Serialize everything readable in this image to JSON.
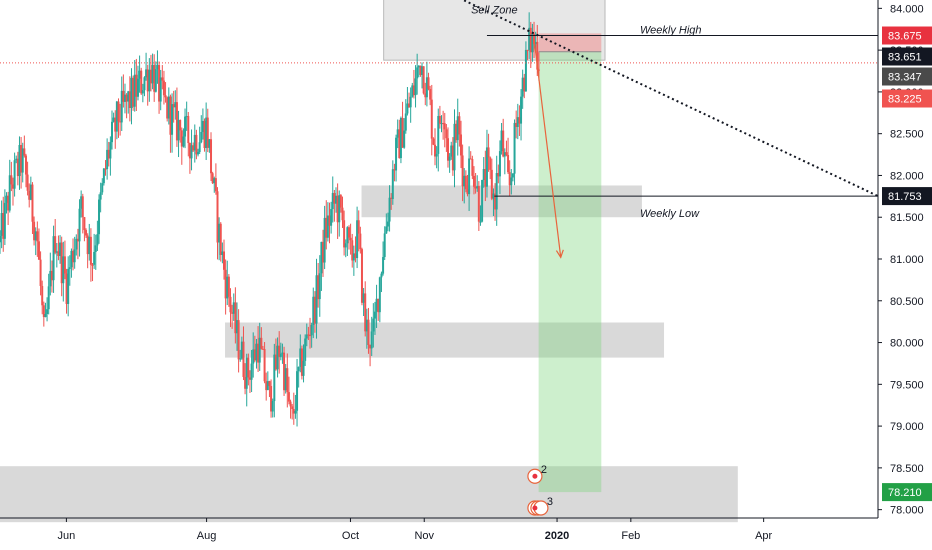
{
  "chart_data": {
    "type": "candlestick",
    "title": "",
    "xlabel": "",
    "ylabel": "",
    "ylim": [
      77.9,
      84.1
    ],
    "grid": false,
    "x_ticks": [
      {
        "label": "Jun",
        "time": 0.3
      },
      {
        "label": "Aug",
        "time": 2.2
      },
      {
        "label": "Oct",
        "time": 4.15
      },
      {
        "label": "Nov",
        "time": 5.15
      },
      {
        "label": "2020",
        "time": 6.95
      },
      {
        "label": "Feb",
        "time": 7.95
      },
      {
        "label": "Apr",
        "time": 9.75
      }
    ],
    "y_ticks": [
      "78.000",
      "78.500",
      "79.000",
      "79.500",
      "80.000",
      "80.500",
      "81.000",
      "81.500",
      "82.000",
      "82.500",
      "83.000",
      "83.500",
      "84.000"
    ],
    "price_tags": [
      {
        "label": "83.675",
        "price": 83.675,
        "color": "#e8323f"
      },
      {
        "label": "83.651",
        "price": 83.651,
        "color": "#131722"
      },
      {
        "label": "83.347",
        "price": 83.347,
        "color": "#4a4a4a"
      },
      {
        "label": "83.225",
        "price": 83.225,
        "color": "#f05350"
      },
      {
        "label": "81.753",
        "price": 81.753,
        "color": "#131722"
      },
      {
        "label": "78.210",
        "price": 78.21,
        "color": "#22a046"
      }
    ],
    "annotations": {
      "sell_zone_label": "Sell Zone",
      "weekly_high_label": "Weekly High",
      "weekly_low_label": "Weekly Low",
      "weekly_high_price": 83.675,
      "weekly_low_price": 81.753,
      "last_price": 83.347,
      "sell_zone": {
        "t1": 4.6,
        "t2": 7.6,
        "p1": 83.38,
        "p2": 84.2
      },
      "zones": [
        {
          "t1": 4.3,
          "t2": 8.1,
          "p1": 81.5,
          "p2": 81.88
        },
        {
          "t1": 2.45,
          "t2": 8.4,
          "p1": 79.82,
          "p2": 80.24
        },
        {
          "t1": -0.6,
          "t2": 9.4,
          "p1": 77.85,
          "p2": 78.52
        }
      ],
      "position": {
        "t1": 6.7,
        "t2": 7.55,
        "entry": 83.48,
        "stop": 83.7,
        "target": 78.21
      },
      "trendline": {
        "t1": 5.2,
        "p1": 84.3,
        "t2": 11.3,
        "p2": 81.753
      },
      "arrow": {
        "t1": 6.64,
        "p1": 83.62,
        "t2": 7.0,
        "p2": 81.02
      },
      "event_markers": [
        "2",
        "3"
      ]
    },
    "series": [
      {
        "name": "",
        "type": "candlestick",
        "control_points": [
          [
            -0.6,
            81.2
          ],
          [
            -0.45,
            81.9
          ],
          [
            -0.3,
            82.2
          ],
          [
            -0.1,
            81.3
          ],
          [
            0.0,
            80.0
          ],
          [
            0.15,
            81.3
          ],
          [
            0.3,
            80.7
          ],
          [
            0.5,
            81.6
          ],
          [
            0.65,
            81.0
          ],
          [
            0.85,
            82.2
          ],
          [
            1.0,
            82.7
          ],
          [
            1.15,
            82.9
          ],
          [
            1.3,
            83.1
          ],
          [
            1.45,
            83.3
          ],
          [
            1.6,
            82.9
          ],
          [
            1.8,
            82.6
          ],
          [
            2.0,
            82.4
          ],
          [
            2.2,
            82.6
          ],
          [
            2.35,
            81.4
          ],
          [
            2.45,
            80.8
          ],
          [
            2.6,
            80.1
          ],
          [
            2.75,
            79.6
          ],
          [
            2.9,
            80.0
          ],
          [
            3.05,
            79.3
          ],
          [
            3.2,
            80.0
          ],
          [
            3.35,
            79.0
          ],
          [
            3.45,
            79.6
          ],
          [
            3.55,
            80.0
          ],
          [
            3.7,
            80.6
          ],
          [
            3.8,
            81.3
          ],
          [
            3.95,
            81.7
          ],
          [
            4.05,
            81.4
          ],
          [
            4.15,
            81.0
          ],
          [
            4.25,
            81.3
          ],
          [
            4.35,
            80.2
          ],
          [
            4.45,
            80.0
          ],
          [
            4.6,
            81.2
          ],
          [
            4.75,
            82.2
          ],
          [
            4.9,
            82.7
          ],
          [
            5.0,
            83.0
          ],
          [
            5.1,
            83.4
          ],
          [
            5.2,
            83.0
          ],
          [
            5.3,
            82.3
          ],
          [
            5.4,
            82.9
          ],
          [
            5.5,
            82.1
          ],
          [
            5.6,
            82.6
          ],
          [
            5.7,
            81.9
          ],
          [
            5.8,
            82.2
          ],
          [
            5.9,
            81.6
          ],
          [
            6.0,
            82.1
          ],
          [
            6.1,
            81.7
          ],
          [
            6.2,
            82.4
          ],
          [
            6.3,
            81.8
          ],
          [
            6.4,
            82.6
          ],
          [
            6.5,
            83.2
          ],
          [
            6.58,
            83.6
          ],
          [
            6.64,
            83.62
          ],
          [
            6.72,
            83.35
          ]
        ]
      }
    ]
  }
}
